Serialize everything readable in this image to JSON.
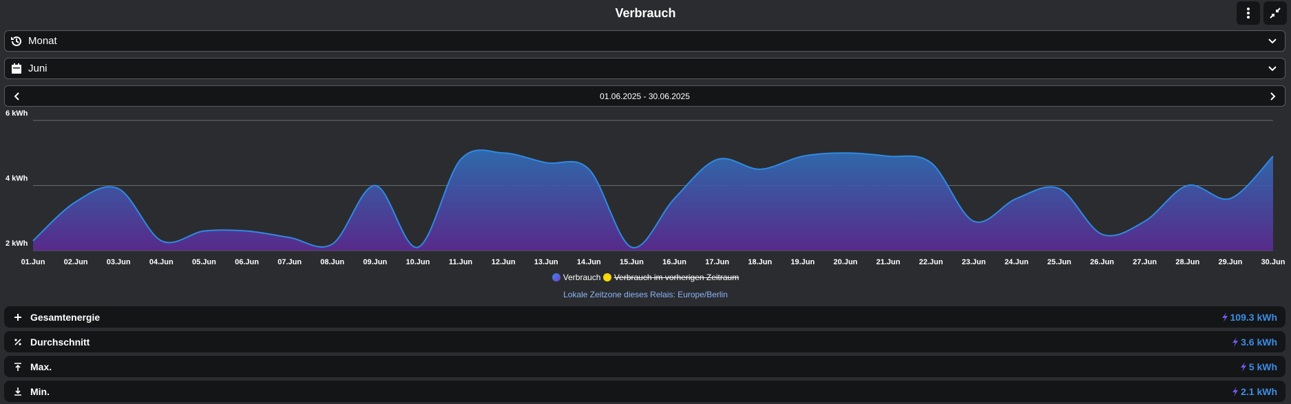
{
  "header": {
    "title": "Verbrauch"
  },
  "period_select": {
    "label": "Monat"
  },
  "month_select": {
    "label": "Juni"
  },
  "date_range": {
    "label": "01.06.2025 - 30.06.2025"
  },
  "chart_data": {
    "type": "area",
    "categories": [
      "01.Jun",
      "02.Jun",
      "03.Jun",
      "04.Jun",
      "05.Jun",
      "06.Jun",
      "07.Jun",
      "08.Jun",
      "09.Jun",
      "10.Jun",
      "11.Jun",
      "12.Jun",
      "13.Jun",
      "14.Jun",
      "15.Jun",
      "16.Jun",
      "17.Jun",
      "18.Jun",
      "19.Jun",
      "20.Jun",
      "21.Jun",
      "22.Jun",
      "23.Jun",
      "24.Jun",
      "25.Jun",
      "26.Jun",
      "27.Jun",
      "28.Jun",
      "29.Jun",
      "30.Jun"
    ],
    "series": [
      {
        "name": "Verbrauch",
        "color": "#2f8ae6",
        "values": [
          2.3,
          3.5,
          3.9,
          2.3,
          2.6,
          2.6,
          2.4,
          2.2,
          4.0,
          2.1,
          4.8,
          5.0,
          4.7,
          4.5,
          2.1,
          3.6,
          4.8,
          4.5,
          4.9,
          5.0,
          4.9,
          4.7,
          2.9,
          3.6,
          3.9,
          2.5,
          2.9,
          4.0,
          3.6,
          4.9
        ]
      }
    ],
    "hidden_series": [
      {
        "name": "Verbrauch im vorherigen Zeitraum",
        "color": "#f5d90a"
      }
    ],
    "ylim": [
      2,
      6
    ],
    "yticks": [
      {
        "value": 2,
        "label": "2 kWh"
      },
      {
        "value": 4,
        "label": "4 kWh"
      },
      {
        "value": 6,
        "label": "6 kWh"
      }
    ],
    "grid": true
  },
  "timezone_note": "Lokale Zeitzone dieses Relais: Europe/Berlin",
  "stats": [
    {
      "label": "Gesamtenergie",
      "value": "109.3 kWh"
    },
    {
      "label": "Durchschnitt",
      "value": "3.6 kWh"
    },
    {
      "label": "Max.",
      "value": "5 kWh"
    },
    {
      "label": "Min.",
      "value": "2.1 kWh"
    }
  ]
}
